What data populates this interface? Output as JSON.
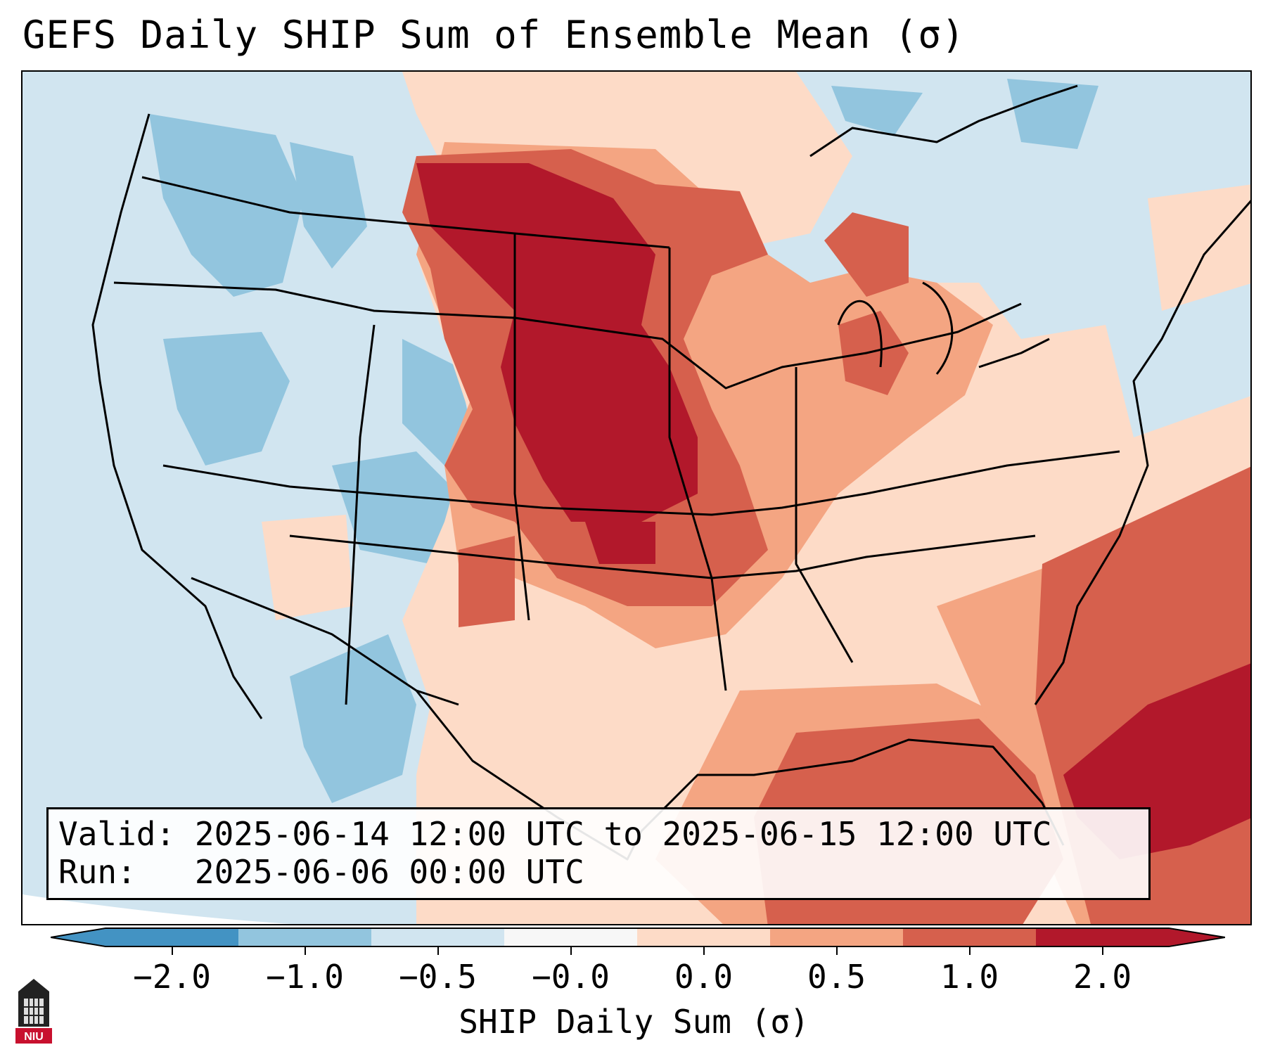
{
  "title": "GEFS Daily SHIP Sum of Ensemble Mean (σ)",
  "info": {
    "valid_label": "Valid:",
    "valid_value": "2025-06-14 12:00 UTC to 2025-06-15 12:00 UTC",
    "run_label": "Run:",
    "run_value": "2025-06-06 00:00 UTC"
  },
  "colorbar": {
    "label": "SHIP Daily Sum (σ)",
    "ticks": [
      "−2.0",
      "−1.0",
      "−0.5",
      "−0.0",
      "0.0",
      "0.5",
      "1.0",
      "2.0"
    ],
    "colors": [
      "#4393c3",
      "#92c5de",
      "#d1e5f0",
      "#f7f7f7",
      "#fddbc7",
      "#f4a582",
      "#d6604d",
      "#b2182b"
    ],
    "extend": "both"
  },
  "logo": {
    "icon": "niu-logo-icon",
    "text": "NIU"
  },
  "map": {
    "background_color": "#d1e5f0",
    "regions": [
      {
        "name": "northern-plains-max",
        "category": "2.0"
      },
      {
        "name": "southeast-atlantic-max",
        "category": "2.0"
      },
      {
        "name": "central-plains-high",
        "category": "1.0"
      },
      {
        "name": "gulf-of-mexico-high",
        "category": "1.0"
      },
      {
        "name": "ohio-valley-moderate",
        "category": "0.5"
      },
      {
        "name": "southern-plains-light",
        "category": "0.0"
      },
      {
        "name": "intermountain-west-low",
        "category": "-0.5"
      },
      {
        "name": "pacific-northwest-low",
        "category": "-1.0"
      }
    ]
  }
}
